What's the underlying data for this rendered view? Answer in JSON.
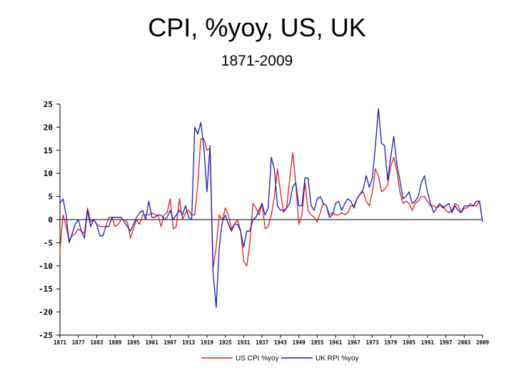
{
  "chart_data": {
    "type": "line",
    "title": "CPI, %yoy, US, UK",
    "subtitle": "1871-2009",
    "ylim": [
      -25,
      25
    ],
    "yticks": [
      25,
      20,
      15,
      10,
      5,
      0,
      -5,
      -10,
      -15,
      -20,
      -25
    ],
    "xlim": [
      1871,
      2009
    ],
    "xticks": [
      "1871",
      "1877",
      "1883",
      "1889",
      "1895",
      "1901",
      "1907",
      "1913",
      "1919",
      "1925",
      "1931",
      "1937",
      "1943",
      "1949",
      "1955",
      "1961",
      "1967",
      "1973",
      "1979",
      "1985",
      "1991",
      "1997",
      "2003",
      "2009"
    ],
    "grid": false,
    "legend_position": "bottom-center",
    "series": [
      {
        "name": "US CPI %yoy",
        "color": "#d42020",
        "x": [
          1871,
          1872,
          1873,
          1874,
          1875,
          1876,
          1877,
          1878,
          1879,
          1880,
          1881,
          1882,
          1883,
          1884,
          1885,
          1886,
          1887,
          1888,
          1889,
          1890,
          1891,
          1892,
          1893,
          1894,
          1895,
          1896,
          1897,
          1898,
          1899,
          1900,
          1901,
          1902,
          1903,
          1904,
          1905,
          1906,
          1907,
          1908,
          1909,
          1910,
          1911,
          1912,
          1913,
          1914,
          1915,
          1916,
          1917,
          1918,
          1919,
          1920,
          1921,
          1922,
          1923,
          1924,
          1925,
          1926,
          1927,
          1928,
          1929,
          1930,
          1931,
          1932,
          1933,
          1934,
          1935,
          1936,
          1937,
          1938,
          1939,
          1940,
          1941,
          1942,
          1943,
          1944,
          1945,
          1946,
          1947,
          1948,
          1949,
          1950,
          1951,
          1952,
          1953,
          1954,
          1955,
          1956,
          1957,
          1958,
          1959,
          1960,
          1961,
          1962,
          1963,
          1964,
          1965,
          1966,
          1967,
          1968,
          1969,
          1970,
          1971,
          1972,
          1973,
          1974,
          1975,
          1976,
          1977,
          1978,
          1979,
          1980,
          1981,
          1982,
          1983,
          1984,
          1985,
          1986,
          1987,
          1988,
          1989,
          1990,
          1991,
          1992,
          1993,
          1994,
          1995,
          1996,
          1997,
          1998,
          1999,
          2000,
          2001,
          2002,
          2003,
          2004,
          2005,
          2006,
          2007,
          2008,
          2009
        ],
        "values": [
          -6.5,
          1.0,
          -1.5,
          -4.5,
          -3.5,
          -3.0,
          -2.0,
          -2.5,
          -3.0,
          2.5,
          -0.5,
          0.0,
          -1.0,
          -1.5,
          -1.5,
          -1.5,
          0.5,
          0.5,
          -1.5,
          -1.0,
          0.0,
          0.0,
          -0.5,
          -4.0,
          -2.0,
          0.0,
          -1.0,
          1.0,
          1.0,
          1.0,
          1.5,
          1.0,
          1.0,
          -1.5,
          1.0,
          1.5,
          4.5,
          -2.0,
          -1.5,
          4.5,
          0.0,
          1.5,
          2.0,
          1.0,
          1.0,
          7.5,
          17.5,
          17.5,
          15.0,
          15.5,
          -10.5,
          -6.0,
          1.0,
          0.0,
          2.5,
          1.0,
          -2.0,
          -1.0,
          0.0,
          -2.5,
          -9.0,
          -10.0,
          -5.0,
          3.5,
          2.5,
          1.0,
          3.5,
          -2.0,
          -1.5,
          1.0,
          5.0,
          11.0,
          6.0,
          1.5,
          2.5,
          8.5,
          14.5,
          8.0,
          -1.0,
          1.0,
          8.0,
          2.0,
          1.0,
          0.5,
          -0.5,
          1.5,
          3.5,
          3.0,
          1.0,
          1.5,
          1.0,
          1.0,
          1.5,
          1.0,
          1.5,
          3.0,
          3.0,
          4.5,
          5.5,
          6.0,
          4.0,
          3.0,
          6.0,
          11.0,
          9.5,
          6.0,
          6.5,
          7.5,
          11.5,
          13.5,
          10.5,
          6.0,
          3.5,
          4.0,
          3.5,
          2.0,
          3.5,
          4.0,
          5.0,
          5.0,
          4.0,
          3.0,
          3.0,
          2.5,
          3.0,
          3.0,
          2.0,
          1.5,
          2.0,
          3.5,
          3.0,
          1.5,
          2.5,
          2.5,
          3.5,
          3.0,
          3.0,
          4.0,
          -0.5
        ]
      },
      {
        "name": "UK RPI %yoy",
        "color": "#1a1ab0",
        "x": [
          1871,
          1872,
          1873,
          1874,
          1875,
          1876,
          1877,
          1878,
          1879,
          1880,
          1881,
          1882,
          1883,
          1884,
          1885,
          1886,
          1887,
          1888,
          1889,
          1890,
          1891,
          1892,
          1893,
          1894,
          1895,
          1896,
          1897,
          1898,
          1899,
          1900,
          1901,
          1902,
          1903,
          1904,
          1905,
          1906,
          1907,
          1908,
          1909,
          1910,
          1911,
          1912,
          1913,
          1914,
          1915,
          1916,
          1917,
          1918,
          1919,
          1920,
          1921,
          1922,
          1923,
          1924,
          1925,
          1926,
          1927,
          1928,
          1929,
          1930,
          1931,
          1932,
          1933,
          1934,
          1935,
          1936,
          1937,
          1938,
          1939,
          1940,
          1941,
          1942,
          1943,
          1944,
          1945,
          1946,
          1947,
          1948,
          1949,
          1950,
          1951,
          1952,
          1953,
          1954,
          1955,
          1956,
          1957,
          1958,
          1959,
          1960,
          1961,
          1962,
          1963,
          1964,
          1965,
          1966,
          1967,
          1968,
          1969,
          1970,
          1971,
          1972,
          1973,
          1974,
          1975,
          1976,
          1977,
          1978,
          1979,
          1980,
          1981,
          1982,
          1983,
          1984,
          1985,
          1986,
          1987,
          1988,
          1989,
          1990,
          1991,
          1992,
          1993,
          1994,
          1995,
          1996,
          1997,
          1998,
          1999,
          2000,
          2001,
          2002,
          2003,
          2004,
          2005,
          2006,
          2007,
          2008,
          2009
        ],
        "values": [
          3.5,
          4.5,
          1.0,
          -5.0,
          -3.0,
          -1.0,
          0.0,
          -2.5,
          -4.0,
          2.0,
          -1.5,
          0.0,
          -1.0,
          -3.5,
          -3.5,
          -1.5,
          -1.5,
          0.5,
          0.5,
          0.5,
          0.5,
          -0.5,
          -1.5,
          -2.5,
          -1.0,
          0.5,
          1.5,
          2.0,
          0.0,
          4.0,
          0.5,
          0.5,
          1.0,
          1.0,
          0.0,
          0.5,
          2.0,
          0.0,
          1.0,
          2.0,
          1.0,
          3.0,
          0.5,
          0.0,
          20.0,
          18.5,
          21.0,
          15.5,
          6.0,
          16.0,
          -11.5,
          -19.0,
          -6.0,
          -0.5,
          1.0,
          -1.0,
          -2.5,
          -1.0,
          -1.0,
          -2.5,
          -6.0,
          -2.5,
          -2.5,
          0.0,
          0.5,
          2.0,
          3.5,
          1.0,
          2.5,
          13.5,
          11.0,
          3.0,
          2.0,
          2.0,
          2.5,
          3.5,
          7.0,
          8.0,
          3.0,
          3.0,
          9.0,
          9.0,
          3.0,
          2.0,
          4.5,
          5.0,
          3.5,
          3.0,
          0.5,
          1.0,
          3.5,
          4.0,
          2.0,
          3.5,
          4.5,
          4.0,
          2.5,
          4.5,
          5.5,
          6.5,
          9.5,
          7.0,
          9.0,
          16.0,
          24.0,
          16.5,
          16.0,
          8.5,
          13.5,
          18.0,
          12.0,
          8.5,
          4.5,
          5.0,
          6.0,
          3.5,
          4.0,
          5.0,
          8.0,
          9.5,
          6.0,
          3.5,
          1.5,
          2.5,
          3.5,
          2.5,
          3.0,
          3.5,
          1.5,
          3.0,
          2.0,
          1.5,
          3.0,
          3.0,
          3.0,
          3.0,
          4.0,
          4.0,
          -0.5
        ]
      }
    ]
  }
}
